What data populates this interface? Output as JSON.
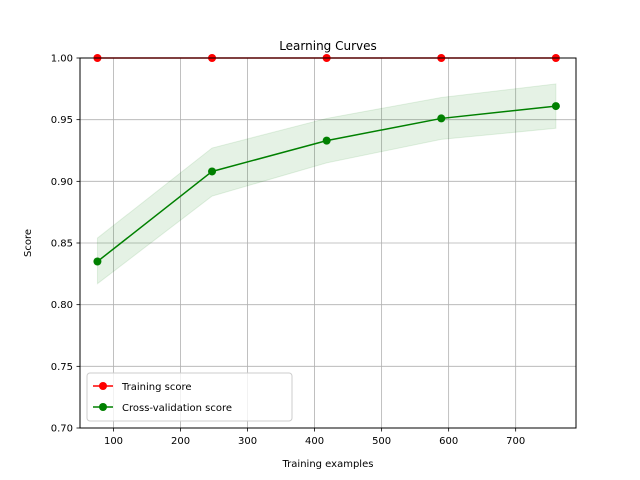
{
  "chart_data": {
    "type": "line",
    "title": "Learning Curves",
    "xlabel": "Training examples",
    "ylabel": "Score",
    "xlim": [
      50,
      790
    ],
    "ylim": [
      0.7,
      1.0
    ],
    "xticks": [
      100,
      200,
      300,
      400,
      500,
      600,
      700
    ],
    "yticks": [
      0.7,
      0.75,
      0.8,
      0.85,
      0.9,
      0.95,
      1.0
    ],
    "grid": true,
    "legend_placement": "lower-left",
    "x": [
      76,
      247,
      418,
      589,
      760
    ],
    "series": [
      {
        "name": "Training score",
        "color": "#ff0000",
        "values": [
          1.0,
          1.0,
          1.0,
          1.0,
          1.0
        ],
        "band_lower": [
          1.0,
          1.0,
          1.0,
          1.0,
          1.0
        ],
        "band_upper": [
          1.0,
          1.0,
          1.0,
          1.0,
          1.0
        ]
      },
      {
        "name": "Cross-validation score",
        "color": "#008000",
        "values": [
          0.835,
          0.908,
          0.933,
          0.951,
          0.961
        ],
        "band_lower": [
          0.817,
          0.888,
          0.915,
          0.934,
          0.943
        ],
        "band_upper": [
          0.854,
          0.927,
          0.951,
          0.968,
          0.979
        ]
      }
    ]
  }
}
